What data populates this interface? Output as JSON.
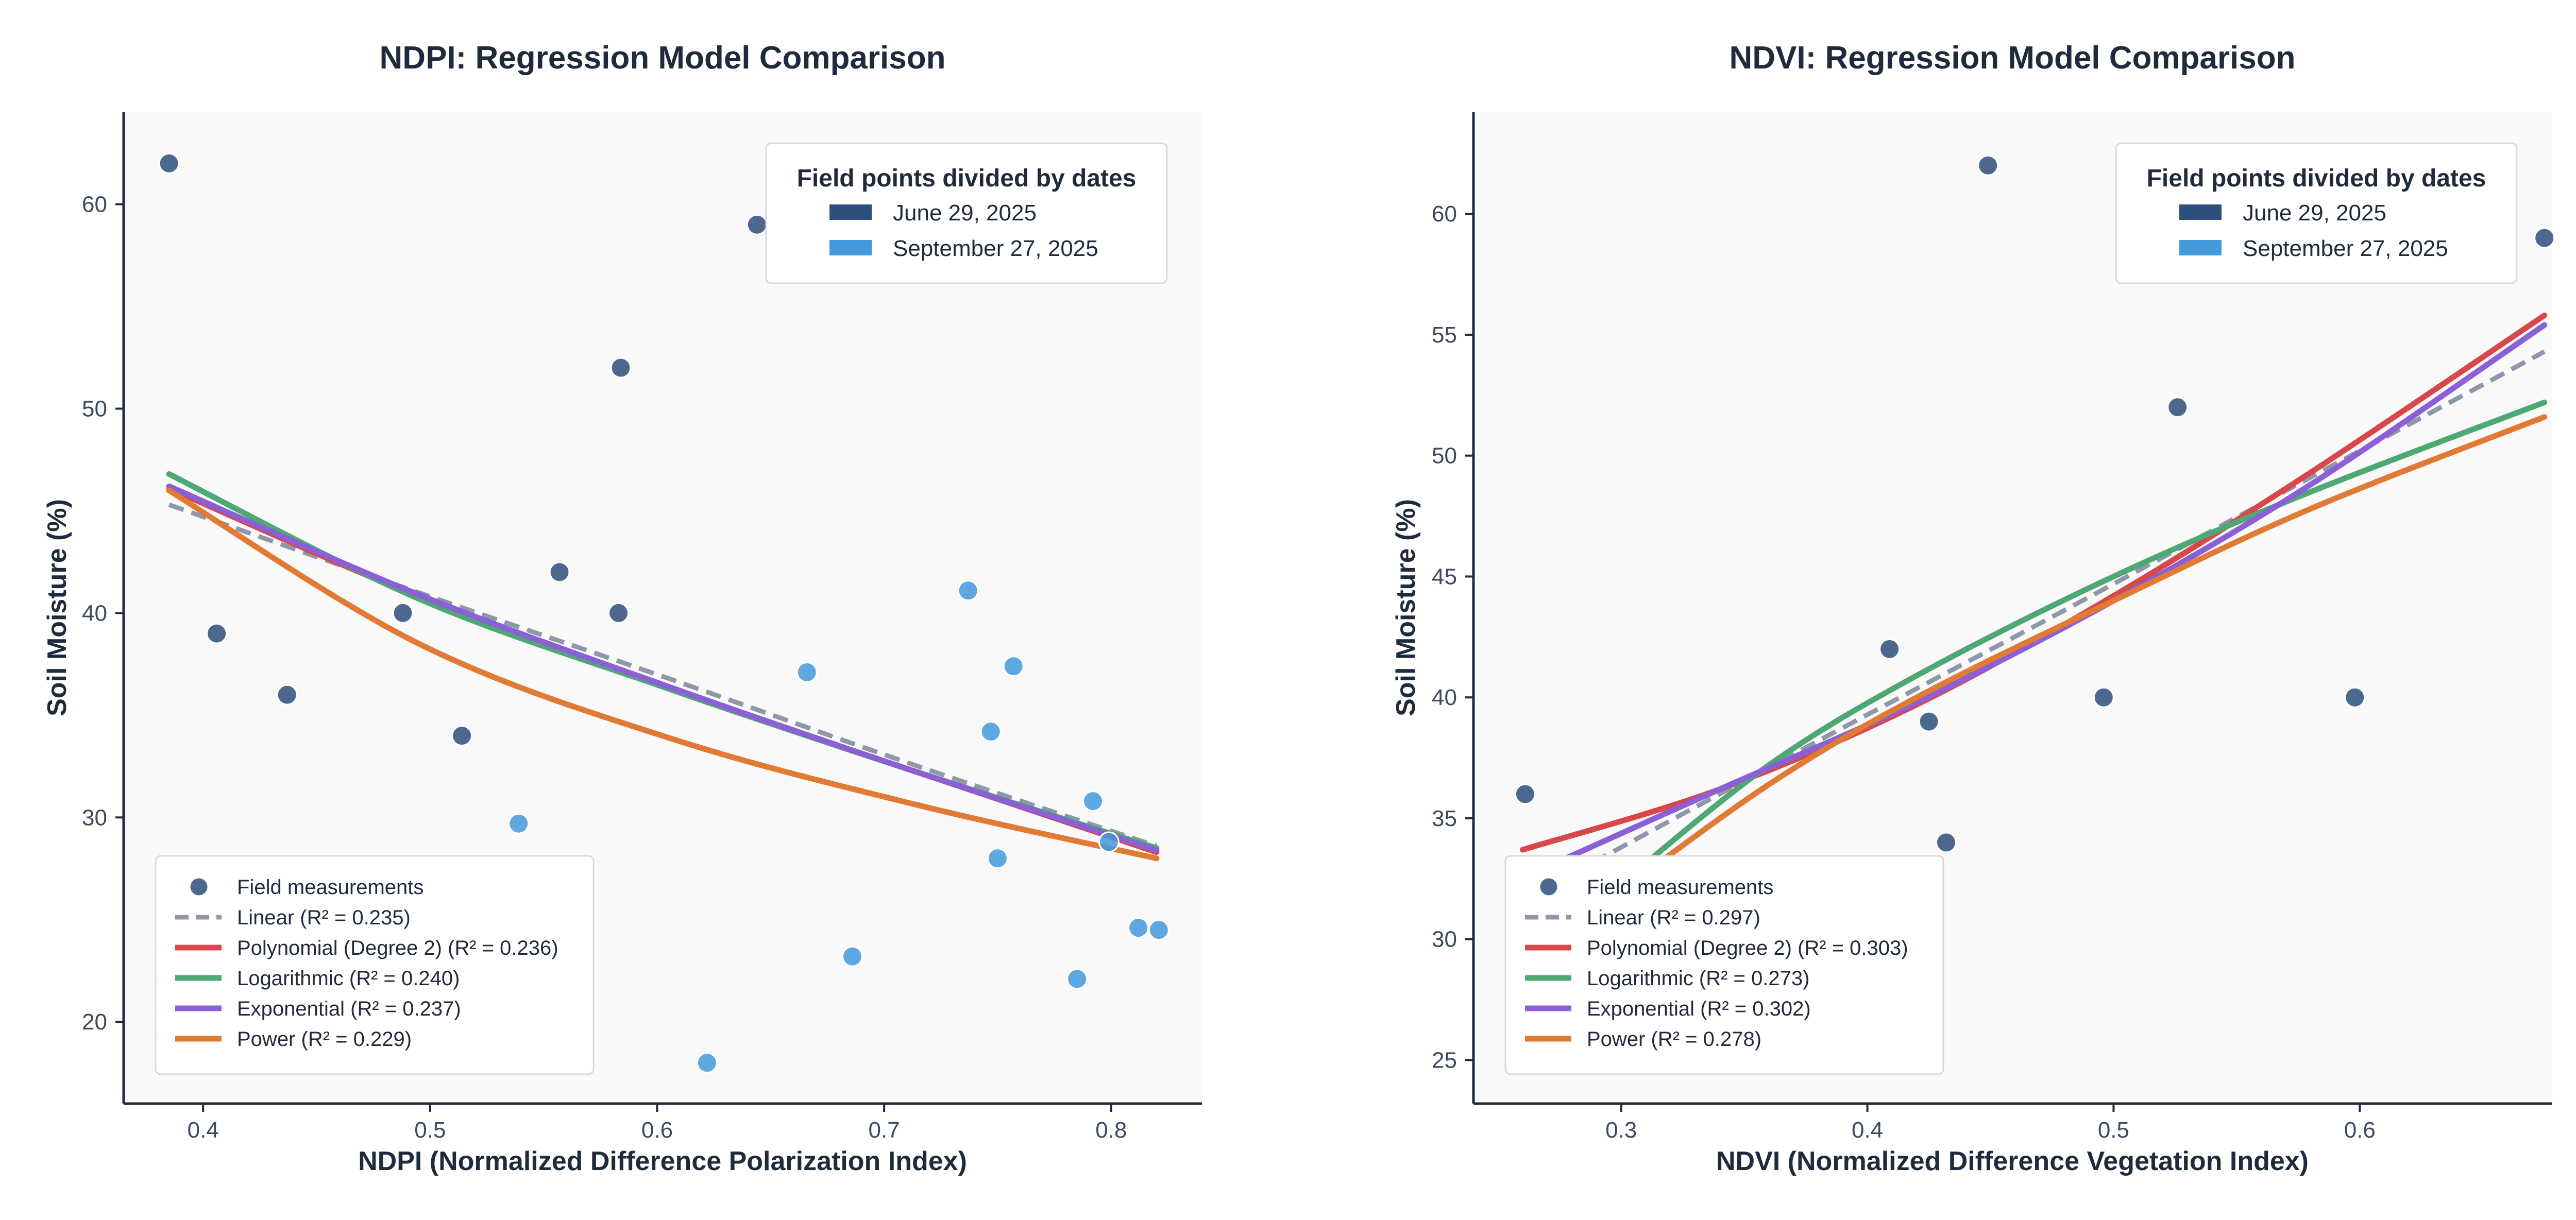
{
  "colors": {
    "background": "#ffffff",
    "plot_bg": "#f9f9f9",
    "axis": "#1f2a3c",
    "june": "#2e4f7c",
    "september": "#4499dd",
    "linear": "#8f98aa",
    "polynomial": "#d9474b",
    "logarithmic": "#4ea874",
    "exponential": "#8b5fd6",
    "power": "#e07a35"
  },
  "date_legend": {
    "title": "Field points divided by dates",
    "entries": [
      "June 29, 2025",
      "September 27, 2025"
    ]
  },
  "chart_data": [
    {
      "type": "scatter",
      "title": "NDPI: Regression Model Comparison",
      "xlabel": "NDPI (Normalized Difference Polarization Index)",
      "ylabel": "Soil Moisture (%)",
      "xlim": [
        0.365,
        0.84
      ],
      "ylim": [
        16,
        64.5
      ],
      "xticks": [
        0.4,
        0.5,
        0.6,
        0.7,
        0.8
      ],
      "xtick_labels": [
        "0.4",
        "0.5",
        "0.6",
        "0.7",
        "0.8"
      ],
      "yticks": [
        20,
        30,
        40,
        50,
        60
      ],
      "ytick_labels": [
        "20",
        "30",
        "40",
        "50",
        "60"
      ],
      "grid": false,
      "date_legend_position": "top-right",
      "model_legend_position": "bottom-left",
      "points": [
        {
          "group": "june",
          "x": 0.385,
          "y": 62
        },
        {
          "group": "june",
          "x": 0.406,
          "y": 39
        },
        {
          "group": "june",
          "x": 0.437,
          "y": 36
        },
        {
          "group": "june",
          "x": 0.488,
          "y": 40
        },
        {
          "group": "june",
          "x": 0.514,
          "y": 34
        },
        {
          "group": "june",
          "x": 0.557,
          "y": 42
        },
        {
          "group": "june",
          "x": 0.583,
          "y": 40
        },
        {
          "group": "june",
          "x": 0.584,
          "y": 52
        },
        {
          "group": "june",
          "x": 0.644,
          "y": 59
        },
        {
          "group": "september",
          "x": 0.539,
          "y": 29.7
        },
        {
          "group": "september",
          "x": 0.622,
          "y": 18
        },
        {
          "group": "september",
          "x": 0.666,
          "y": 37.1
        },
        {
          "group": "september",
          "x": 0.686,
          "y": 23.2
        },
        {
          "group": "september",
          "x": 0.737,
          "y": 41.1
        },
        {
          "group": "september",
          "x": 0.747,
          "y": 34.2
        },
        {
          "group": "september",
          "x": 0.75,
          "y": 28.0
        },
        {
          "group": "september",
          "x": 0.757,
          "y": 37.4
        },
        {
          "group": "september",
          "x": 0.785,
          "y": 22.1
        },
        {
          "group": "september",
          "x": 0.792,
          "y": 30.8
        },
        {
          "group": "september",
          "x": 0.799,
          "y": 28.8
        },
        {
          "group": "september",
          "x": 0.812,
          "y": 24.6
        },
        {
          "group": "september",
          "x": 0.821,
          "y": 24.5
        }
      ],
      "series": [
        {
          "key": "linear",
          "name": "Linear (R² = 0.235)",
          "dashed": true,
          "x": [
            0.385,
            0.495,
            0.605,
            0.715,
            0.82
          ],
          "y": [
            45.3,
            41.0,
            36.8,
            32.5,
            28.6
          ]
        },
        {
          "key": "polynomial",
          "name": "Polynomial (Degree 2) (R² = 0.236)",
          "dashed": false,
          "x": [
            0.385,
            0.495,
            0.605,
            0.715,
            0.82
          ],
          "y": [
            46.1,
            40.8,
            36.3,
            32.2,
            28.3
          ]
        },
        {
          "key": "logarithmic",
          "name": "Logarithmic (R² = 0.240)",
          "dashed": false,
          "x": [
            0.385,
            0.495,
            0.605,
            0.715,
            0.82
          ],
          "y": [
            46.8,
            40.7,
            36.3,
            32.2,
            28.5
          ]
        },
        {
          "key": "exponential",
          "name": "Exponential (R² = 0.237)",
          "dashed": false,
          "x": [
            0.385,
            0.495,
            0.605,
            0.715,
            0.82
          ],
          "y": [
            46.2,
            40.9,
            36.4,
            32.2,
            28.4
          ]
        },
        {
          "key": "power",
          "name": "Power (R² = 0.229)",
          "dashed": false,
          "x": [
            0.385,
            0.495,
            0.605,
            0.715,
            0.82
          ],
          "y": [
            46.0,
            38.5,
            33.9,
            30.6,
            28.0
          ]
        }
      ],
      "scatter_legend_label": "Field measurements"
    },
    {
      "type": "scatter",
      "title": "NDVI: Regression Model Comparison",
      "xlabel": "NDVI (Normalized Difference Vegetation Index)",
      "ylabel": "Soil Moisture (%)",
      "xlim": [
        0.24,
        0.678
      ],
      "ylim": [
        23.2,
        64.2
      ],
      "xticks": [
        0.3,
        0.4,
        0.5,
        0.6
      ],
      "xtick_labels": [
        "0.3",
        "0.4",
        "0.5",
        "0.6"
      ],
      "yticks": [
        25,
        30,
        35,
        40,
        45,
        50,
        55,
        60
      ],
      "ytick_labels": [
        "25",
        "30",
        "35",
        "40",
        "45",
        "50",
        "55",
        "60"
      ],
      "grid": false,
      "date_legend_position": "top-right",
      "model_legend_position": "bottom-left",
      "points": [
        {
          "group": "june",
          "x": 0.261,
          "y": 36
        },
        {
          "group": "june",
          "x": 0.409,
          "y": 42
        },
        {
          "group": "june",
          "x": 0.425,
          "y": 39
        },
        {
          "group": "june",
          "x": 0.432,
          "y": 34
        },
        {
          "group": "june",
          "x": 0.449,
          "y": 62
        },
        {
          "group": "june",
          "x": 0.496,
          "y": 40
        },
        {
          "group": "june",
          "x": 0.526,
          "y": 52
        },
        {
          "group": "june",
          "x": 0.598,
          "y": 40
        },
        {
          "group": "june",
          "x": 0.675,
          "y": 59
        }
      ],
      "series": [
        {
          "key": "linear",
          "name": "Linear (R² = 0.297)",
          "dashed": true,
          "x": [
            0.28,
            0.38,
            0.48,
            0.58,
            0.675
          ],
          "y": [
            32.7,
            38.2,
            43.6,
            49.1,
            54.3
          ]
        },
        {
          "key": "polynomial",
          "name": "Polynomial (Degree 2) (R² = 0.303)",
          "dashed": false,
          "x": [
            0.26,
            0.34,
            0.42,
            0.5,
            0.58,
            0.675
          ],
          "y": [
            33.7,
            36.2,
            39.7,
            44.2,
            49.3,
            55.8
          ]
        },
        {
          "key": "logarithmic",
          "name": "Logarithmic (R² = 0.273)",
          "dashed": false,
          "x": [
            0.3,
            0.36,
            0.42,
            0.5,
            0.58,
            0.675
          ],
          "y": [
            32.3,
            37.2,
            40.9,
            45.0,
            48.5,
            52.2
          ]
        },
        {
          "key": "exponential",
          "name": "Exponential (R² = 0.302)",
          "dashed": false,
          "x": [
            0.27,
            0.34,
            0.42,
            0.5,
            0.58,
            0.675
          ],
          "y": [
            33.0,
            36.2,
            39.8,
            44.0,
            48.8,
            55.4
          ]
        },
        {
          "key": "power",
          "name": "Power (R² = 0.278)",
          "dashed": false,
          "x": [
            0.3,
            0.36,
            0.42,
            0.5,
            0.58,
            0.675
          ],
          "y": [
            32.0,
            36.4,
            40.0,
            44.0,
            47.8,
            51.6
          ]
        }
      ],
      "scatter_legend_label": "Field measurements"
    }
  ]
}
